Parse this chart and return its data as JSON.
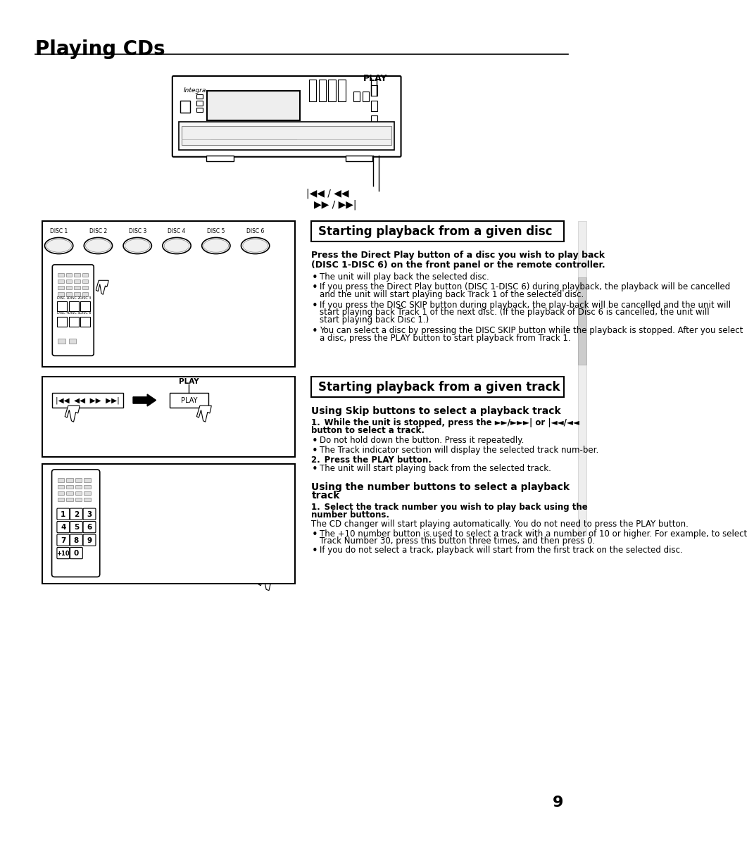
{
  "title": "Playing CDs",
  "bg_color": "#ffffff",
  "page_number": "9",
  "section1_header": "Starting playback from a given disc",
  "section1_bold_line1": "Press the Direct Play button of a disc you wish to play back",
  "section1_bold_line2": "(DISC 1-DISC 6) on the front panel or the remote controller.",
  "section1_bullets": [
    "The unit will play back the selected disc.",
    "If you press the Direct Play button (DISC 1-DISC 6) during playback, the playback will be cancelled and the unit will start playing back Track 1 of the selected disc.",
    "If you press the DISC SKIP button during playback, the play-back will be cancelled and the unit will start playing back Track 1 of the next disc. (If the playback of Disc 6 is cancelled, the unit will start playing back Disc 1.)",
    "You can select a disc by pressing the DISC SKIP button while the playback is stopped. After you select a disc, press the PLAY button to start playback from Track 1."
  ],
  "section2_header": "Starting playback from a given track",
  "section2_sub": "Using Skip buttons to select a playback track",
  "section2_step1_parts": [
    "1. While the unit is stopped, press the ►►/►►►| or |◄◄/◄◄",
    "button to select a track."
  ],
  "section2_bullets1": [
    "Do not hold down the button. Press it repeatedly.",
    "The Track indicator section will display the selected track num-ber."
  ],
  "section2_step2": "2. Press the PLAY button.",
  "section2_bullets2": [
    "The unit will start playing back from the selected track."
  ],
  "section3_sub_line1": "Using the number buttons to select a playback",
  "section3_sub_line2": "track",
  "section3_step1_parts": [
    "1. Select the track number you wish to play back using the",
    "number buttons."
  ],
  "section3_para": "The CD changer will start playing automatically. You do not need to press the PLAY button.",
  "section3_bullets": [
    "The +10 number button is used to select a track with a number of 10 or higher. For example, to select Track Number 30, press this button three times, and then press 0.",
    "If you do not select a track, playback will start from the first track on the selected disc."
  ]
}
